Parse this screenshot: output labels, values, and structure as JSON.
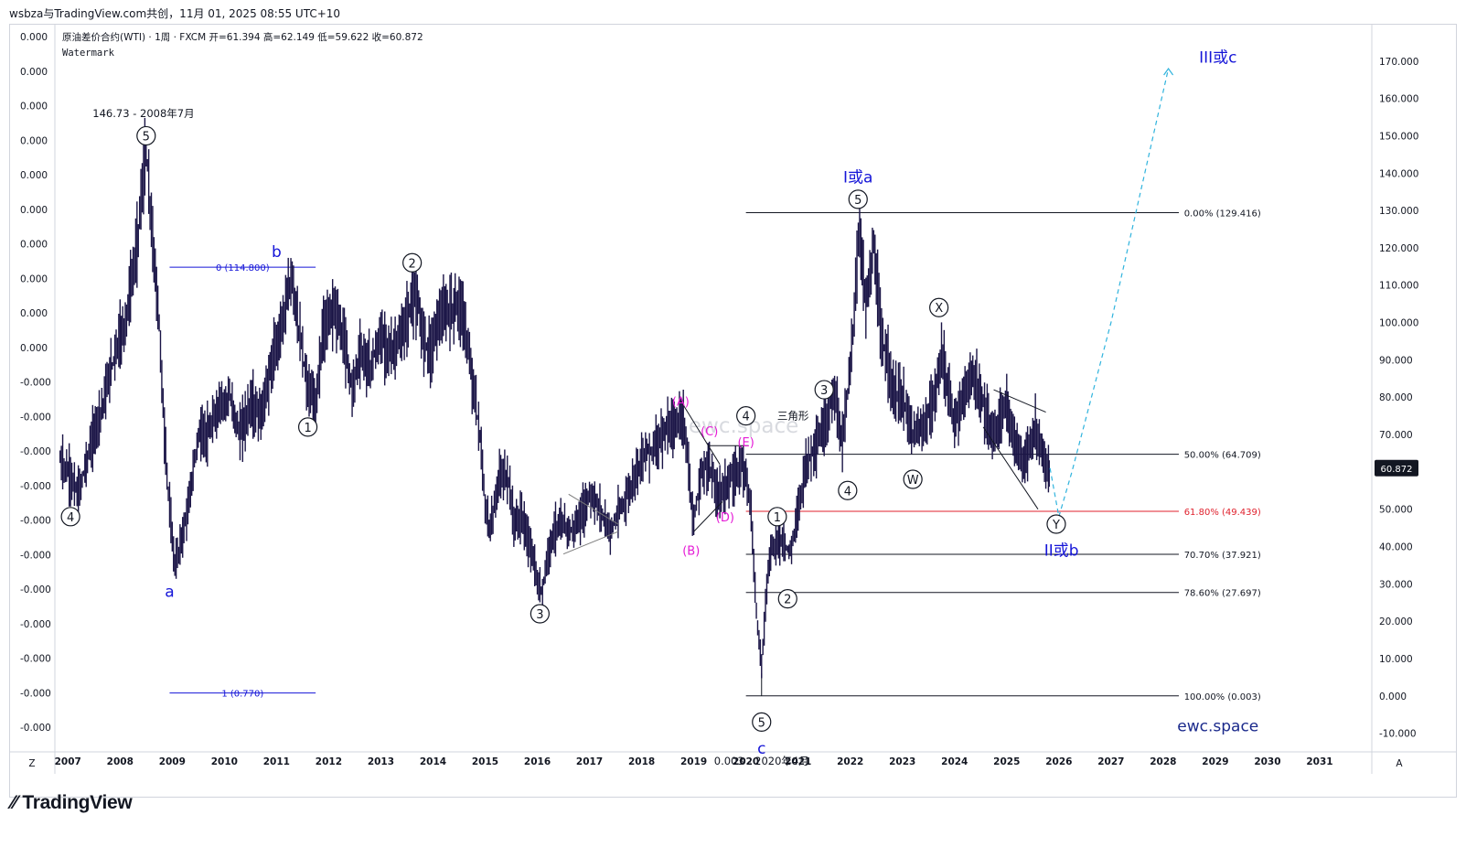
{
  "top_line": "wsbza与TradingView.com共创，11月 01, 2025 08:55 UTC+10",
  "footer_brand": "TradingView",
  "chart_data": {
    "type": "candlestick",
    "symbol_line": "原油差价合约(WTI) · 1周 · FXCM  开=61.394  高=62.149  低=59.622  收=60.872",
    "watermark_label": "Watermark",
    "center_watermark": "ewc.space",
    "brand_watermark": "ewc.space",
    "last_price": "60.872",
    "last_price_color": "#131722",
    "candle_color": "#1a1446",
    "y_range": [
      -15,
      180
    ],
    "x_range": [
      2006.75,
      2032.0
    ],
    "y_ticks": [
      -10,
      0,
      10,
      20,
      30,
      40,
      50,
      60,
      70,
      80,
      90,
      100,
      110,
      120,
      130,
      140,
      150,
      160,
      170
    ],
    "y_tick_labels": [
      "-10.000",
      "0.000",
      "10.000",
      "20.000",
      "30.000",
      "40.000",
      "50.000",
      "60.000",
      "70.000",
      "80.000",
      "90.000",
      "100.000",
      "110.000",
      "120.000",
      "130.000",
      "140.000",
      "150.000",
      "160.000",
      "170.000"
    ],
    "x_ticks": [
      2007,
      2008,
      2009,
      2010,
      2011,
      2012,
      2013,
      2014,
      2015,
      2016,
      2017,
      2018,
      2019,
      2020,
      2021,
      2022,
      2023,
      2024,
      2025,
      2026,
      2027,
      2028,
      2029,
      2030,
      2031
    ],
    "x_tick_labels": [
      "2007",
      "2008",
      "2009",
      "2010",
      "2011",
      "2012",
      "2013",
      "2014",
      "2015",
      "2016",
      "2017",
      "2018",
      "2019",
      "2020",
      "2021",
      "2022",
      "2023",
      "2024",
      "2025",
      "2026",
      "2027",
      "2028",
      "2029",
      "2030",
      "2031"
    ],
    "left_axis_labels": [
      "0.000",
      "0.000",
      "0.000",
      "0.000",
      "0.000",
      "0.000",
      "0.000",
      "0.000",
      "0.000",
      "0.000",
      "-0.000",
      "-0.000",
      "-0.000",
      "-0.000",
      "-0.000",
      "-0.000",
      "-0.000",
      "-0.000",
      "-0.000",
      "-0.000",
      "-0.000"
    ],
    "axis_corner_left": "Z",
    "axis_corner_right": "A",
    "price_path": [
      [
        2006.85,
        63
      ],
      [
        2007.0,
        60
      ],
      [
        2007.2,
        54
      ],
      [
        2007.4,
        65
      ],
      [
        2007.7,
        80
      ],
      [
        2007.9,
        92
      ],
      [
        2008.1,
        100
      ],
      [
        2008.3,
        118
      ],
      [
        2008.5,
        146
      ],
      [
        2008.6,
        126
      ],
      [
        2008.75,
        100
      ],
      [
        2008.85,
        70
      ],
      [
        2008.95,
        50
      ],
      [
        2009.05,
        35
      ],
      [
        2009.15,
        40
      ],
      [
        2009.3,
        50
      ],
      [
        2009.5,
        70
      ],
      [
        2009.7,
        70
      ],
      [
        2009.9,
        78
      ],
      [
        2010.1,
        80
      ],
      [
        2010.3,
        70
      ],
      [
        2010.5,
        78
      ],
      [
        2010.7,
        75
      ],
      [
        2010.9,
        88
      ],
      [
        2011.1,
        100
      ],
      [
        2011.3,
        112
      ],
      [
        2011.45,
        96
      ],
      [
        2011.6,
        82
      ],
      [
        2011.75,
        78
      ],
      [
        2011.9,
        98
      ],
      [
        2012.1,
        105
      ],
      [
        2012.3,
        95
      ],
      [
        2012.45,
        82
      ],
      [
        2012.6,
        92
      ],
      [
        2012.8,
        88
      ],
      [
        2013.0,
        96
      ],
      [
        2013.2,
        92
      ],
      [
        2013.4,
        96
      ],
      [
        2013.65,
        108
      ],
      [
        2013.8,
        97
      ],
      [
        2013.95,
        92
      ],
      [
        2014.1,
        101
      ],
      [
        2014.3,
        103
      ],
      [
        2014.5,
        105
      ],
      [
        2014.6,
        100
      ],
      [
        2014.75,
        85
      ],
      [
        2014.9,
        70
      ],
      [
        2015.0,
        50
      ],
      [
        2015.1,
        45
      ],
      [
        2015.3,
        60
      ],
      [
        2015.45,
        58
      ],
      [
        2015.55,
        46
      ],
      [
        2015.7,
        48
      ],
      [
        2015.9,
        38
      ],
      [
        2016.0,
        30
      ],
      [
        2016.1,
        28
      ],
      [
        2016.2,
        38
      ],
      [
        2016.35,
        45
      ],
      [
        2016.5,
        46
      ],
      [
        2016.65,
        44
      ],
      [
        2016.85,
        48
      ],
      [
        2017.0,
        54
      ],
      [
        2017.2,
        50
      ],
      [
        2017.4,
        44
      ],
      [
        2017.6,
        50
      ],
      [
        2017.8,
        56
      ],
      [
        2018.0,
        64
      ],
      [
        2018.2,
        66
      ],
      [
        2018.4,
        70
      ],
      [
        2018.6,
        72
      ],
      [
        2018.8,
        75
      ],
      [
        2018.95,
        54
      ],
      [
        2019.0,
        46
      ],
      [
        2019.15,
        60
      ],
      [
        2019.3,
        62
      ],
      [
        2019.45,
        54
      ],
      [
        2019.6,
        56
      ],
      [
        2019.75,
        58
      ],
      [
        2019.9,
        62
      ],
      [
        2020.0,
        60
      ],
      [
        2020.1,
        50
      ],
      [
        2020.2,
        22
      ],
      [
        2020.3,
        8
      ],
      [
        2020.4,
        30
      ],
      [
        2020.5,
        40
      ],
      [
        2020.7,
        42
      ],
      [
        2020.85,
        38
      ],
      [
        2021.0,
        50
      ],
      [
        2021.15,
        62
      ],
      [
        2021.3,
        66
      ],
      [
        2021.5,
        72
      ],
      [
        2021.7,
        82
      ],
      [
        2021.85,
        68
      ],
      [
        2022.0,
        88
      ],
      [
        2022.18,
        125
      ],
      [
        2022.3,
        105
      ],
      [
        2022.45,
        120
      ],
      [
        2022.6,
        95
      ],
      [
        2022.75,
        88
      ],
      [
        2022.85,
        80
      ],
      [
        2023.0,
        80
      ],
      [
        2023.2,
        70
      ],
      [
        2023.4,
        72
      ],
      [
        2023.6,
        78
      ],
      [
        2023.75,
        92
      ],
      [
        2023.9,
        80
      ],
      [
        2024.0,
        73
      ],
      [
        2024.2,
        82
      ],
      [
        2024.35,
        86
      ],
      [
        2024.5,
        80
      ],
      [
        2024.7,
        70
      ],
      [
        2024.85,
        72
      ],
      [
        2025.0,
        78
      ],
      [
        2025.15,
        68
      ],
      [
        2025.3,
        62
      ],
      [
        2025.45,
        66
      ],
      [
        2025.55,
        72
      ],
      [
        2025.7,
        64
      ],
      [
        2025.8,
        60
      ],
      [
        2025.83,
        61
      ]
    ],
    "levels": [
      {
        "label": "0.00% (129.416)",
        "value": 129.416,
        "color": "#131722"
      },
      {
        "label": "50.00% (64.709)",
        "value": 64.709,
        "color": "#131722"
      },
      {
        "label": "61.80% (49.439)",
        "value": 49.439,
        "color": "#e0222e"
      },
      {
        "label": "70.70% (37.921)",
        "value": 37.921,
        "color": "#131722"
      },
      {
        "label": "78.60% (27.697)",
        "value": 27.697,
        "color": "#131722"
      },
      {
        "label": "100.00% (0.003)",
        "value": 0.003,
        "color": "#131722"
      }
    ],
    "blue_levels": [
      {
        "label": "0 (114.800)",
        "value": 114.8
      },
      {
        "label": "1 (0.770)",
        "value": 0.77
      }
    ],
    "projection": [
      [
        2025.83,
        61
      ],
      [
        2026.0,
        48
      ],
      [
        2026.25,
        60
      ],
      [
        2027.0,
        100
      ],
      [
        2028.1,
        168
      ]
    ],
    "projection_color": "#2fb3dd",
    "wave_labels": [
      {
        "text": "5",
        "x": 2008.5,
        "y": 150,
        "style": "circle"
      },
      {
        "text": "4",
        "x": 2007.05,
        "y": 48,
        "style": "circle"
      },
      {
        "text": "1",
        "x": 2011.6,
        "y": 72,
        "style": "circle"
      },
      {
        "text": "2",
        "x": 2013.6,
        "y": 116,
        "style": "circle"
      },
      {
        "text": "3",
        "x": 2016.05,
        "y": 22,
        "style": "circle"
      },
      {
        "text": "4",
        "x": 2020.0,
        "y": 75,
        "style": "circle"
      },
      {
        "text": "5",
        "x": 2020.3,
        "y": -7,
        "style": "circle"
      },
      {
        "text": "1",
        "x": 2020.6,
        "y": 48,
        "style": "circle"
      },
      {
        "text": "2",
        "x": 2020.8,
        "y": 26,
        "style": "circle"
      },
      {
        "text": "3",
        "x": 2021.5,
        "y": 82,
        "style": "circle"
      },
      {
        "text": "4",
        "x": 2021.95,
        "y": 55,
        "style": "circle"
      },
      {
        "text": "5",
        "x": 2022.15,
        "y": 133,
        "style": "circle"
      },
      {
        "text": "X",
        "x": 2023.7,
        "y": 104,
        "style": "circle"
      },
      {
        "text": "W",
        "x": 2023.2,
        "y": 58,
        "style": "circle"
      },
      {
        "text": "Y",
        "x": 2025.95,
        "y": 46,
        "style": "circle"
      }
    ],
    "pink_labels": [
      {
        "text": "(A)",
        "x": 2018.75,
        "y": 79
      },
      {
        "text": "(B)",
        "x": 2018.95,
        "y": 39
      },
      {
        "text": "(C)",
        "x": 2019.3,
        "y": 71
      },
      {
        "text": "(D)",
        "x": 2019.6,
        "y": 48
      },
      {
        "text": "(E)",
        "x": 220.0,
        "y": 68
      }
    ],
    "pink_color": "#e51bd6",
    "blue_color": "#1515d8",
    "blue_labels": [
      {
        "text": "a",
        "x": 2008.95,
        "y": 28
      },
      {
        "text": "b",
        "x": 2011.0,
        "y": 119
      },
      {
        "text": "c",
        "x": 2020.3,
        "y": -14
      },
      {
        "text": "I或a",
        "x": 2022.15,
        "y": 139
      },
      {
        "text": "II或b",
        "x": 2026.05,
        "y": 39
      },
      {
        "text": "III或c",
        "x": 2029.05,
        "y": 171
      }
    ],
    "notes": [
      {
        "text": "146.73 - 2008年7月",
        "x": 2008.45,
        "y": 156
      },
      {
        "text": "0.003 - 2020年4月",
        "x": 2020.3,
        "y": -17.5
      },
      {
        "text": "三角形",
        "x": 2020.6,
        "y": 75
      }
    ]
  }
}
